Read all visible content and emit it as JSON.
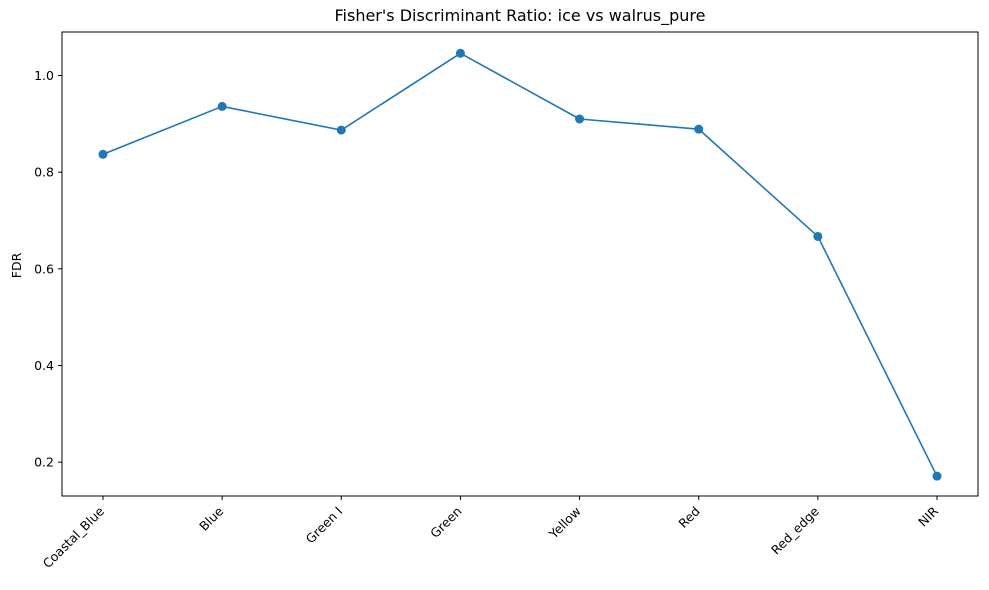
{
  "chart_data": {
    "type": "line",
    "title": "Fisher's Discriminant Ratio: ice vs walrus_pure",
    "xlabel": "",
    "ylabel": "FDR",
    "categories": [
      "Coastal_Blue",
      "Blue",
      "Green I",
      "Green",
      "Yellow",
      "Red",
      "Red_edge",
      "NIR"
    ],
    "series": [
      {
        "values": [
          0.837,
          0.936,
          0.887,
          1.046,
          0.91,
          0.889,
          0.667,
          0.171
        ],
        "color": "#1f77b4",
        "marker": "circle"
      }
    ],
    "ylim": [
      0.13,
      1.09
    ],
    "yticks": [
      0.2,
      0.4,
      0.6,
      0.8,
      1.0
    ],
    "ytick_labels": [
      "0.2",
      "0.4",
      "0.6",
      "0.8",
      "1.0"
    ],
    "grid": false,
    "legend": "none"
  }
}
